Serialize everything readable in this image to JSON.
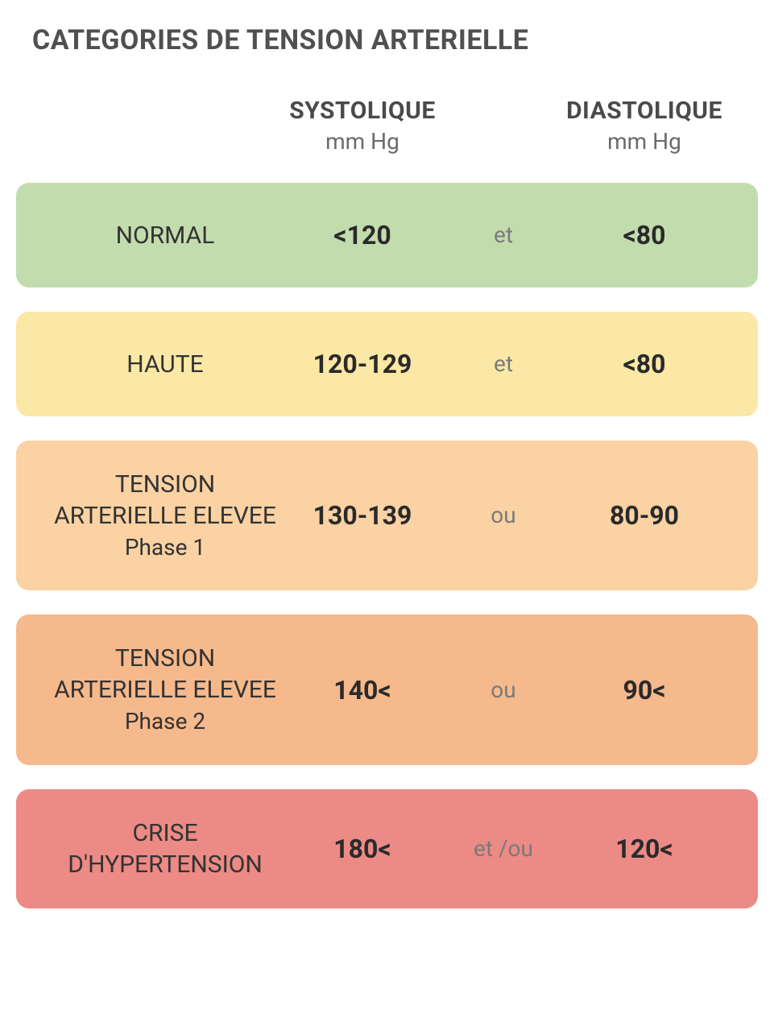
{
  "title": "CATEGORIES DE TENSION ARTERIELLE",
  "headers": {
    "systolic": {
      "label": "SYSTOLIQUE",
      "unit": "mm Hg"
    },
    "diastolic": {
      "label": "DIASTOLIQUE",
      "unit": "mm Hg"
    }
  },
  "rows": [
    {
      "label": "NORMAL",
      "phase": "",
      "systolic": "<120",
      "connector": "et",
      "diastolic": "<80",
      "background_color": "#c3dcae"
    },
    {
      "label": "HAUTE",
      "phase": "",
      "systolic": "120-129",
      "connector": "et",
      "diastolic": "<80",
      "background_color": "#fbe8a6"
    },
    {
      "label": "TENSION ARTERIELLE ELEVEE",
      "phase": "Phase 1",
      "systolic": "130-139",
      "connector": "ou",
      "diastolic": "80-90",
      "background_color": "#fad2a3"
    },
    {
      "label": "TENSION ARTERIELLE ELEVEE",
      "phase": "Phase 2",
      "systolic": "140<",
      "connector": "ou",
      "diastolic": "90<",
      "background_color": "#f6b98c"
    },
    {
      "label": "CRISE D'HYPERTENSION",
      "phase": "",
      "systolic": "180<",
      "connector": "et /ou",
      "diastolic": "120<",
      "background_color": "#ec8a85"
    }
  ],
  "styling": {
    "title_color": "#505050",
    "title_fontsize": 34,
    "header_label_color": "#4a4a4a",
    "header_label_fontsize": 30,
    "header_unit_color": "#6a6a6a",
    "header_unit_fontsize": 28,
    "category_label_color": "#333333",
    "category_label_fontsize": 30,
    "value_color": "#2a2a2a",
    "value_fontsize": 32,
    "connector_color": "#7a7a7a",
    "connector_fontsize": 28,
    "row_border_radius": 16,
    "row_gap": 30,
    "background_color": "#ffffff"
  }
}
